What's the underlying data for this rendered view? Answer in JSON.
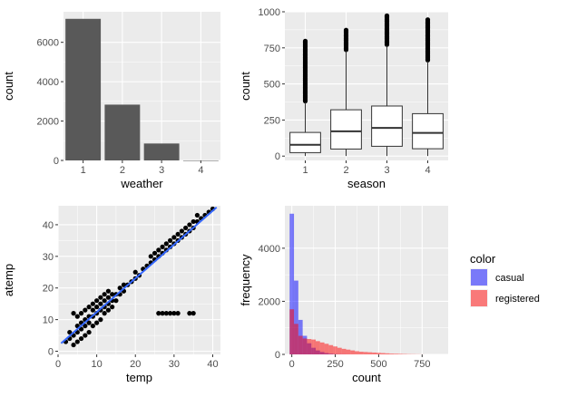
{
  "chart_data": [
    {
      "type": "bar",
      "xlabel": "weather",
      "ylabel": "count",
      "categories": [
        "1",
        "2",
        "3",
        "4"
      ],
      "values": [
        7192,
        2834,
        859,
        1
      ],
      "ylim": [
        0,
        7550
      ],
      "yticks": [
        0,
        2000,
        4000,
        6000
      ],
      "grid": true
    },
    {
      "type": "box",
      "xlabel": "season",
      "ylabel": "count",
      "categories": [
        "1",
        "2",
        "3",
        "4"
      ],
      "boxes": [
        {
          "q1": 24,
          "median": 78,
          "q3": 164,
          "whisker_low": 1,
          "whisker_high": 373,
          "outlier_max": 801
        },
        {
          "q1": 49,
          "median": 172,
          "q3": 321,
          "whisker_low": 1,
          "whisker_high": 729,
          "outlier_max": 873
        },
        {
          "q1": 68,
          "median": 195,
          "q3": 347,
          "whisker_low": 1,
          "whisker_high": 765,
          "outlier_max": 977
        },
        {
          "q1": 51,
          "median": 161,
          "q3": 294,
          "whisker_low": 1,
          "whisker_high": 657,
          "outlier_max": 948
        }
      ],
      "ylim": [
        -30,
        1000
      ],
      "yticks": [
        0,
        250,
        500,
        750,
        1000
      ],
      "grid": true
    },
    {
      "type": "scatter",
      "xlabel": "temp",
      "ylabel": "atemp",
      "xlim": [
        0,
        42
      ],
      "ylim": [
        -1,
        46
      ],
      "xticks": [
        0,
        10,
        20,
        30,
        40
      ],
      "yticks": [
        0,
        10,
        20,
        30,
        40
      ],
      "trend_line": {
        "x": [
          0.8,
          41
        ],
        "y": [
          2.5,
          45.5
        ],
        "color": "#3366ff"
      },
      "points": [
        [
          2,
          3
        ],
        [
          3,
          4
        ],
        [
          3,
          6
        ],
        [
          4,
          2
        ],
        [
          4,
          5
        ],
        [
          5,
          3
        ],
        [
          5,
          6
        ],
        [
          5,
          8
        ],
        [
          6,
          4
        ],
        [
          6,
          7
        ],
        [
          6,
          9
        ],
        [
          7,
          5
        ],
        [
          7,
          8
        ],
        [
          7,
          10
        ],
        [
          8,
          6
        ],
        [
          8,
          9
        ],
        [
          8,
          11
        ],
        [
          9,
          8
        ],
        [
          9,
          11
        ],
        [
          9,
          13
        ],
        [
          10,
          9
        ],
        [
          10,
          12
        ],
        [
          10,
          14
        ],
        [
          11,
          10
        ],
        [
          11,
          13
        ],
        [
          11,
          15
        ],
        [
          12,
          12
        ],
        [
          12,
          14
        ],
        [
          12,
          16
        ],
        [
          13,
          13
        ],
        [
          13,
          15
        ],
        [
          13,
          17
        ],
        [
          14,
          14
        ],
        [
          14,
          16
        ],
        [
          14,
          18
        ],
        [
          15,
          16
        ],
        [
          15,
          18
        ],
        [
          16,
          18
        ],
        [
          16,
          20
        ],
        [
          17,
          19
        ],
        [
          17,
          21
        ],
        [
          18,
          21
        ],
        [
          19,
          22
        ],
        [
          20,
          23
        ],
        [
          20,
          25
        ],
        [
          21,
          24
        ],
        [
          22,
          26
        ],
        [
          23,
          27
        ],
        [
          24,
          28
        ],
        [
          24,
          30
        ],
        [
          25,
          29
        ],
        [
          25,
          31
        ],
        [
          26,
          30
        ],
        [
          26,
          32
        ],
        [
          27,
          31
        ],
        [
          27,
          33
        ],
        [
          28,
          32
        ],
        [
          28,
          34
        ],
        [
          29,
          33
        ],
        [
          29,
          35
        ],
        [
          30,
          34
        ],
        [
          30,
          36
        ],
        [
          31,
          35
        ],
        [
          31,
          37
        ],
        [
          32,
          36
        ],
        [
          32,
          38
        ],
        [
          33,
          37
        ],
        [
          33,
          39
        ],
        [
          34,
          38
        ],
        [
          34,
          40
        ],
        [
          35,
          39
        ],
        [
          35,
          41
        ],
        [
          36,
          41
        ],
        [
          36,
          43
        ],
        [
          37,
          42
        ],
        [
          38,
          43
        ],
        [
          39,
          44
        ],
        [
          40,
          45
        ],
        [
          4,
          12
        ],
        [
          5,
          11
        ],
        [
          6,
          12
        ],
        [
          7,
          13
        ],
        [
          8,
          14
        ],
        [
          9,
          15
        ],
        [
          10,
          16
        ],
        [
          11,
          17
        ],
        [
          12,
          18
        ],
        [
          13,
          19
        ],
        [
          26,
          12
        ],
        [
          27,
          12
        ],
        [
          28,
          12
        ],
        [
          29,
          12
        ],
        [
          30,
          12
        ],
        [
          31,
          12
        ],
        [
          34,
          12
        ],
        [
          35,
          12
        ]
      ],
      "grid": true
    },
    {
      "type": "histogram",
      "xlabel": "count",
      "ylabel": "frequency",
      "xlim": [
        -40,
        900
      ],
      "ylim": [
        0,
        5600
      ],
      "xticks": [
        0,
        250,
        500,
        750
      ],
      "yticks": [
        0,
        2000,
        4000
      ],
      "bin_width": 25,
      "bin_starts": [
        -12.5,
        12.5,
        37.5,
        62.5,
        87.5,
        112.5,
        137.5,
        162.5,
        187.5,
        212.5,
        237.5,
        262.5,
        287.5,
        312.5,
        337.5,
        362.5,
        387.5,
        412.5,
        437.5,
        462.5,
        487.5,
        512.5,
        537.5,
        562.5,
        587.5,
        612.5,
        637.5,
        662.5,
        687.5,
        712.5,
        737.5
      ],
      "series": [
        {
          "name": "casual",
          "color": "#0000ff",
          "values": [
            5300,
            2780,
            1300,
            700,
            420,
            250,
            150,
            90,
            50,
            25,
            12,
            6,
            4,
            2,
            1,
            1,
            0,
            0,
            0,
            0,
            0,
            0,
            0,
            0,
            0,
            0,
            0,
            0,
            0,
            0,
            0
          ]
        },
        {
          "name": "registered",
          "color": "#ff0000",
          "values": [
            1700,
            1150,
            700,
            600,
            580,
            560,
            500,
            450,
            400,
            350,
            300,
            250,
            210,
            180,
            150,
            120,
            100,
            90,
            80,
            70,
            60,
            50,
            40,
            30,
            25,
            20,
            15,
            10,
            8,
            5,
            3
          ]
        }
      ],
      "legend": {
        "title": "color",
        "position": "right"
      },
      "grid": true
    }
  ]
}
